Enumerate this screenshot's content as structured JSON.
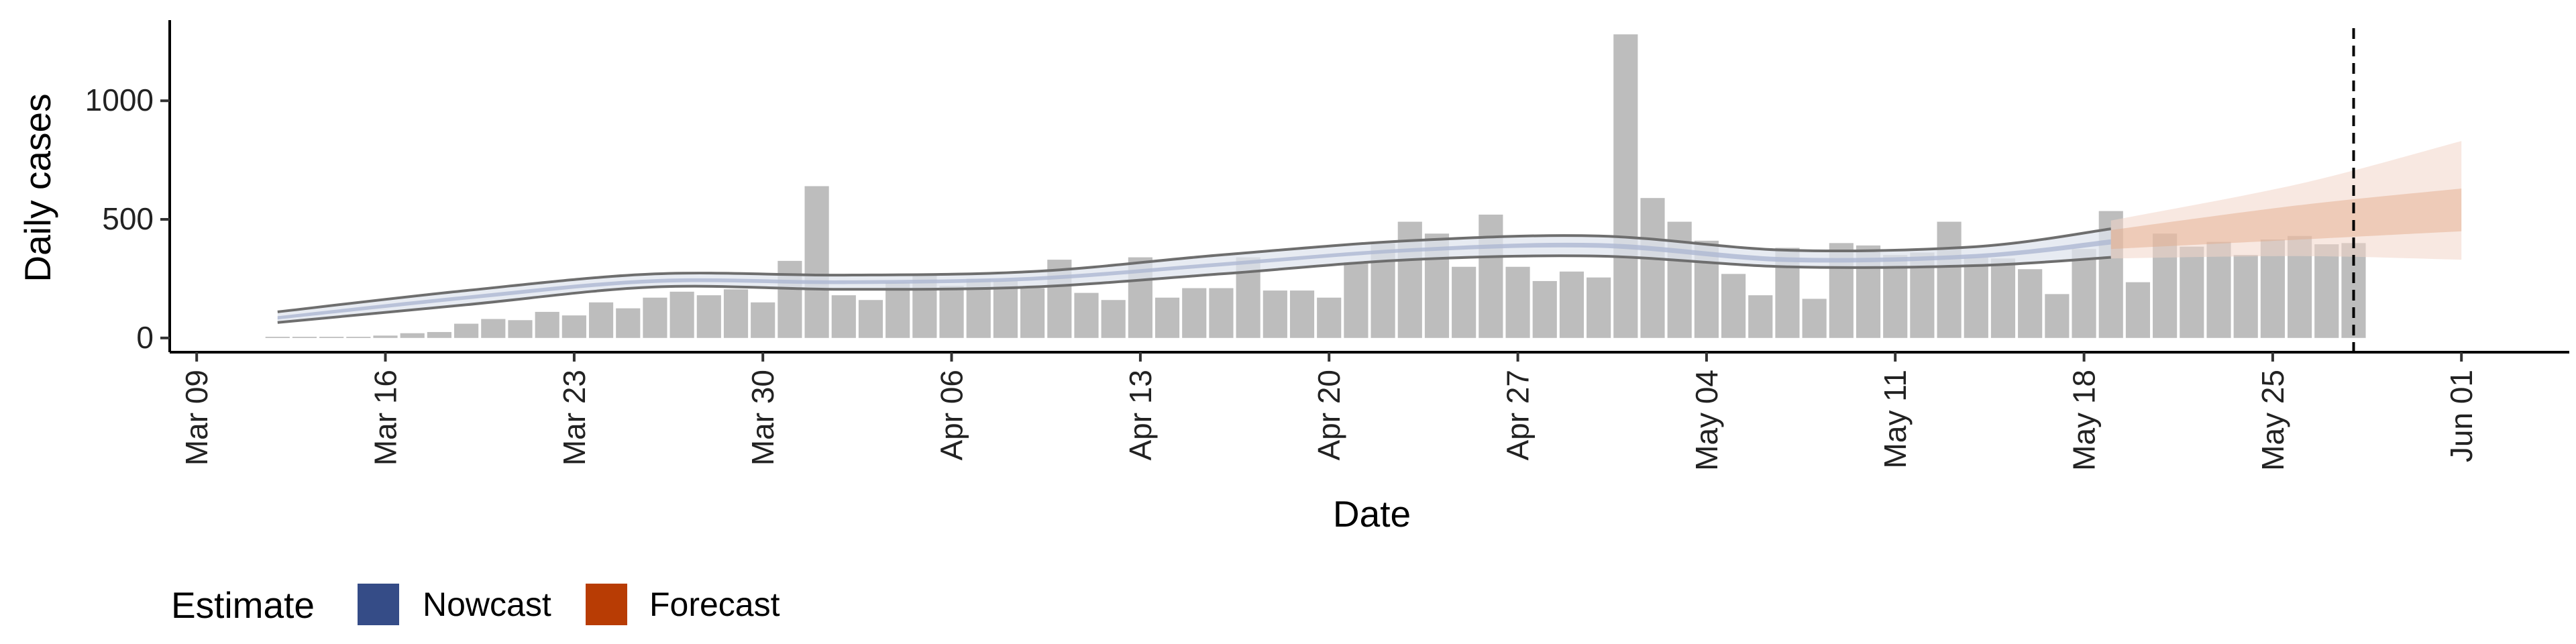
{
  "chart_data": {
    "type": "bar",
    "xlabel": "Date",
    "ylabel": "Daily cases",
    "x_tick_labels": [
      "Mar 09",
      "Mar 16",
      "Mar 23",
      "Mar 30",
      "Apr 06",
      "Apr 13",
      "Apr 20",
      "Apr 27",
      "May 04",
      "May 11",
      "May 18",
      "May 25",
      "Jun 01"
    ],
    "x_tick_dates": [
      "2020-03-09",
      "2020-03-16",
      "2020-03-23",
      "2020-03-30",
      "2020-04-06",
      "2020-04-13",
      "2020-04-20",
      "2020-04-27",
      "2020-05-04",
      "2020-05-11",
      "2020-05-18",
      "2020-05-25",
      "2020-06-01"
    ],
    "xlim": [
      "2020-03-08",
      "2020-06-05"
    ],
    "y_ticks": [
      0,
      500,
      1000
    ],
    "ylim": [
      -60,
      1340
    ],
    "grid": false,
    "reported_cases": {
      "start_date": "2020-03-12",
      "values": [
        5,
        5,
        5,
        5,
        10,
        20,
        25,
        60,
        80,
        75,
        110,
        95,
        150,
        125,
        170,
        195,
        180,
        205,
        150,
        325,
        640,
        180,
        160,
        235,
        270,
        220,
        250,
        240,
        210,
        330,
        190,
        160,
        340,
        170,
        210,
        210,
        340,
        200,
        200,
        170,
        320,
        400,
        490,
        440,
        300,
        520,
        300,
        240,
        280,
        255,
        1280,
        590,
        490,
        410,
        270,
        180,
        380,
        165,
        400,
        390,
        350,
        360,
        490,
        340,
        335,
        290,
        185,
        375,
        535,
        235,
        440,
        385,
        405,
        350,
        415,
        430,
        395,
        400
      ]
    },
    "vertical_line_date": "2020-05-28",
    "series": [
      {
        "name": "Nowcast",
        "color": "#354c87",
        "dates": [
          "2020-03-12",
          "2020-03-19",
          "2020-03-26",
          "2020-04-02",
          "2020-04-09",
          "2020-04-16",
          "2020-04-23",
          "2020-04-30",
          "2020-05-07",
          "2020-05-14",
          "2020-05-19"
        ],
        "median": [
          85,
          170,
          240,
          235,
          250,
          310,
          370,
          390,
          330,
          345,
          405
        ],
        "inner_lower": [
          78,
          162,
          232,
          227,
          242,
          302,
          362,
          380,
          320,
          336,
          394
        ],
        "inner_upper": [
          92,
          178,
          248,
          243,
          258,
          318,
          378,
          400,
          340,
          354,
          416
        ],
        "outer_lower": [
          65,
          140,
          215,
          205,
          215,
          270,
          330,
          345,
          300,
          305,
          340
        ],
        "outer_upper": [
          110,
          200,
          270,
          265,
          280,
          350,
          410,
          430,
          370,
          385,
          460
        ]
      },
      {
        "name": "Forecast",
        "color": "#b83c04",
        "dates": [
          "2020-05-19",
          "2020-05-26",
          "2020-06-01"
        ],
        "median": [
          415,
          490,
          540
        ],
        "inner_lower": [
          375,
          415,
          450
        ],
        "inner_upper": [
          455,
          560,
          630
        ],
        "outer_lower": [
          335,
          345,
          330
        ],
        "outer_upper": [
          495,
          650,
          830
        ]
      }
    ],
    "legend": {
      "title": "Estimate",
      "position": "bottom-left",
      "items": [
        {
          "label": "Nowcast",
          "color": "#354c87"
        },
        {
          "label": "Forecast",
          "color": "#b83c04"
        }
      ]
    }
  }
}
